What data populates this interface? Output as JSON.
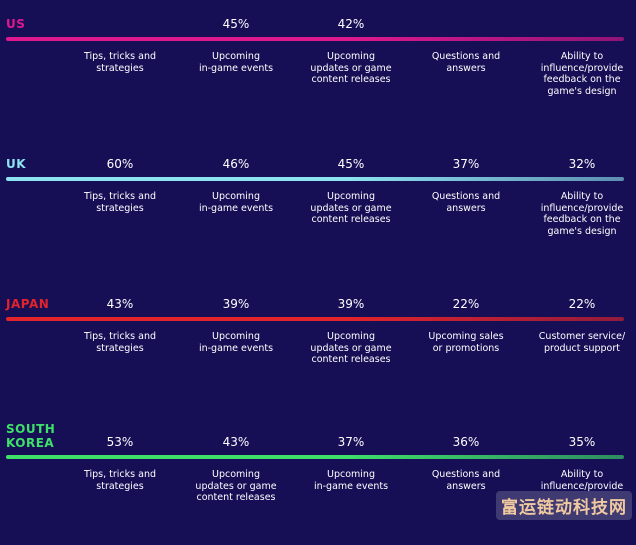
{
  "chart_data": [
    {
      "type": "table",
      "country": "US",
      "bar_color": "#e0188f",
      "categories": [
        "Tips, tricks and strategies",
        "Upcoming in-game events",
        "Upcoming updates or game content releases",
        "Questions and answers",
        "Ability to influence/provide feedback on the game's design"
      ],
      "labels": [
        "Tips, tricks and\nstrategies",
        "Upcoming\nin-game events",
        "Upcoming\nupdates or game\ncontent releases",
        "Questions and\nanswers",
        "Ability to\ninfluence/provide\nfeedback on the\ngame's design"
      ],
      "values_text": [
        "",
        "45%",
        "42%",
        "",
        ""
      ]
    },
    {
      "type": "table",
      "country": "UK",
      "bar_color": "#8de3f0",
      "categories": [
        "Tips, tricks and strategies",
        "Upcoming in-game events",
        "Upcoming updates or game content releases",
        "Questions and answers",
        "Ability to influence/provide feedback on the game's design"
      ],
      "labels": [
        "Tips, tricks and\nstrategies",
        "Upcoming\nin-game events",
        "Upcoming\nupdates or game\ncontent releases",
        "Questions and\nanswers",
        "Ability to\ninfluence/provide\nfeedback on the\ngame's design"
      ],
      "values_text": [
        "60%",
        "46%",
        "45%",
        "37%",
        "32%"
      ]
    },
    {
      "type": "table",
      "country": "JAPAN",
      "bar_color": "#e3232b",
      "categories": [
        "Tips, tricks and strategies",
        "Upcoming in-game events",
        "Upcoming updates or game content releases",
        "Upcoming sales or promotions",
        "Customer service/ product support"
      ],
      "labels": [
        "Tips, tricks and\nstrategies",
        "Upcoming\nin-game events",
        "Upcoming\nupdates or game\ncontent releases",
        "Upcoming sales\nor promotions",
        "Customer service/\nproduct support"
      ],
      "values_text": [
        "43%",
        "39%",
        "39%",
        "22%",
        "22%"
      ]
    },
    {
      "type": "table",
      "country": "SOUTH\nKOREA",
      "bar_color": "#3ee06a",
      "categories": [
        "Tips, tricks and strategies",
        "Upcoming updates or game content releases",
        "Upcoming in-game events",
        "Questions and answers",
        "Ability to influence/provide feedback on the game's design"
      ],
      "labels": [
        "Tips, tricks and\nstrategies",
        "Upcoming\nupdates or game\ncontent releases",
        "Upcoming\nin-game events",
        "Questions and\nanswers",
        "Ability to\ninfluence/provide"
      ],
      "values_text": [
        "53%",
        "43%",
        "37%",
        "36%",
        "35%"
      ]
    }
  ],
  "watermark": "富运链动科技网"
}
